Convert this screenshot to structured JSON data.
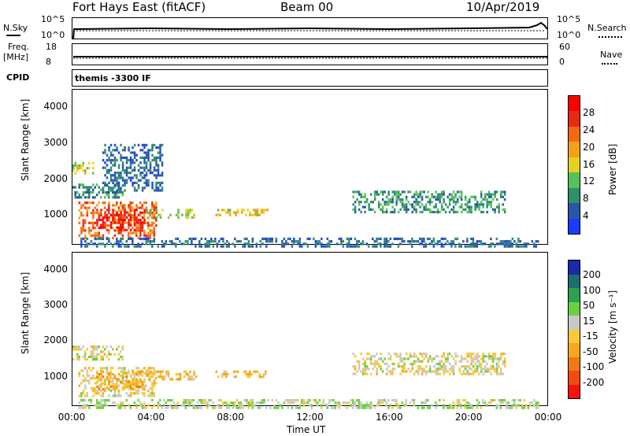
{
  "header": {
    "station": "Fort Hays East (fitACF)",
    "beam": "Beam 00",
    "date": "10/Apr/2019"
  },
  "left_labels": {
    "nsky": "N.Sky",
    "nsky_top": "10^5",
    "nsky_bottom": "10^0",
    "freq": "Freq.",
    "freq_unit": "[MHz]",
    "freq_top": "18",
    "freq_bottom": "8",
    "cpid": "CPID"
  },
  "right_labels": {
    "nsearch": "N.Search",
    "nsearch_top": "10^5",
    "nsearch_bottom": "10^0",
    "nave": "Nave",
    "nave_top": "60",
    "nave_bottom": "0"
  },
  "cpid_text": "themis -3300 IF",
  "colors": {
    "power_scale": [
      "#1a3cff",
      "#2a55a8",
      "#2e8f6a",
      "#58c05a",
      "#e6d21e",
      "#f2a21a",
      "#f46a12",
      "#e82a12",
      "#ff0000"
    ],
    "velocity_scale": [
      "#ff1010",
      "#f04b10",
      "#f07a10",
      "#f5a81a",
      "#f7c83a",
      "#c8c8c8",
      "#6ad040",
      "#2fa050",
      "#1e6e70",
      "#1a2aa8"
    ]
  },
  "chart_data": [
    {
      "type": "heatmap",
      "name": "power",
      "ylabel": "Slant Range [km]",
      "yticks": [
        "1000",
        "2000",
        "3000",
        "4000"
      ],
      "ylim": [
        180,
        4500
      ],
      "xlim": [
        0,
        24
      ],
      "colorbar_label": "Power [dB]",
      "colorbar_ticks": [
        "4",
        "8",
        "12",
        "16",
        "20",
        "24",
        "28"
      ],
      "colorbar_range": [
        0,
        30
      ],
      "regions": [
        {
          "t0": 0.3,
          "t1": 4.2,
          "r0": 400,
          "r1": 1400,
          "v": 22
        },
        {
          "t0": 1.2,
          "t1": 3.6,
          "r0": 600,
          "r1": 1200,
          "v": 27
        },
        {
          "t0": 3.6,
          "t1": 6.2,
          "r0": 950,
          "r1": 1200,
          "v": 14
        },
        {
          "t0": 0.0,
          "t1": 2.5,
          "r0": 1500,
          "r1": 1900,
          "v": 8
        },
        {
          "t0": 0.0,
          "t1": 1.0,
          "r0": 2200,
          "r1": 2500,
          "v": 14
        },
        {
          "t0": 1.5,
          "t1": 4.5,
          "r0": 1700,
          "r1": 3000,
          "v": 6
        },
        {
          "t0": 7.2,
          "t1": 9.8,
          "r0": 1050,
          "r1": 1200,
          "v": 16
        },
        {
          "t0": 14.1,
          "t1": 21.8,
          "r0": 1100,
          "r1": 1700,
          "v": 9
        },
        {
          "t0": 0.3,
          "t1": 23.5,
          "r0": 180,
          "r1": 400,
          "v": 6
        }
      ],
      "xticks": [
        "00:00",
        "04:00",
        "08:00",
        "12:00",
        "16:00",
        "20:00",
        "00:00"
      ]
    },
    {
      "type": "heatmap",
      "name": "velocity",
      "ylabel": "Slant Range [km]",
      "yticks": [
        "1000",
        "2000",
        "3000",
        "4000"
      ],
      "ylim": [
        180,
        4500
      ],
      "xlim": [
        0,
        24
      ],
      "xlabel": "Time UT",
      "xticks": [
        "00:00",
        "04:00",
        "08:00",
        "12:00",
        "16:00",
        "20:00",
        "00:00"
      ],
      "colorbar_label": "Velocity [m s⁻¹]",
      "colorbar_ticks": [
        "200",
        "100",
        "50",
        "15",
        "-15",
        "-50",
        "-100",
        "-200"
      ],
      "colorbar_range": [
        -250,
        250
      ],
      "regions": [
        {
          "t0": 0.3,
          "t1": 4.2,
          "r0": 500,
          "r1": 1300,
          "v": -10
        },
        {
          "t0": 1.2,
          "t1": 3.6,
          "r0": 700,
          "r1": 1200,
          "v": -60
        },
        {
          "t0": 3.6,
          "t1": 6.2,
          "r0": 950,
          "r1": 1200,
          "v": -40
        },
        {
          "t0": 0.0,
          "t1": 2.5,
          "r0": 1500,
          "r1": 1900,
          "v": 5
        },
        {
          "t0": 7.2,
          "t1": 9.8,
          "r0": 1050,
          "r1": 1200,
          "v": -40
        },
        {
          "t0": 14.1,
          "t1": 21.8,
          "r0": 1100,
          "r1": 1700,
          "v": 5
        },
        {
          "t0": 0.3,
          "t1": 23.5,
          "r0": 180,
          "r1": 400,
          "v": 30
        }
      ]
    }
  ]
}
